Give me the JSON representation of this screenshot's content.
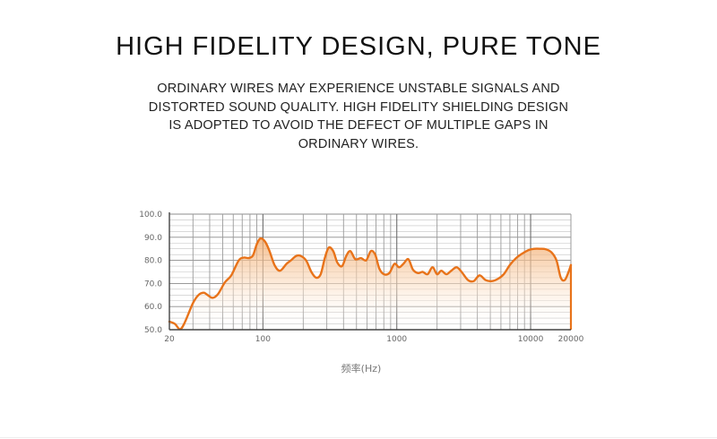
{
  "header": {
    "title": "HIGH FIDELITY DESIGN, PURE TONE",
    "description": "ORDINARY WIRES MAY EXPERIENCE UNSTABLE SIGNALS AND DISTORTED SOUND QUALITY. HIGH FIDELITY SHIELDING DESIGN IS ADOPTED TO AVOID THE DEFECT OF MULTIPLE GAPS IN ORDINARY WIRES."
  },
  "chart_data": {
    "type": "area",
    "title": "",
    "xlabel": "频率(Hz)",
    "ylabel": "",
    "x_scale": "log",
    "xlim": [
      20,
      20000
    ],
    "ylim": [
      50,
      100
    ],
    "x_tick_labels": [
      "20",
      "100",
      "1000",
      "10000",
      "20000"
    ],
    "x_ticks": [
      20,
      100,
      1000,
      10000,
      20000
    ],
    "y_tick_labels": [
      "100.0",
      "90.0",
      "80.0",
      "70.0",
      "60.0",
      "50.0"
    ],
    "y_ticks": [
      100,
      90,
      80,
      70,
      60,
      50
    ],
    "grid": true,
    "line_color": "#e8731a",
    "fill_color": "#f7d3b0",
    "series": [
      {
        "x": [
          20,
          22,
          24,
          26,
          30,
          33,
          36,
          38,
          42,
          46,
          52,
          58,
          66,
          72,
          78,
          84,
          90,
          96,
          104,
          112,
          122,
          134,
          150,
          162,
          176,
          190,
          210,
          230,
          250,
          270,
          290,
          310,
          335,
          360,
          390,
          420,
          450,
          490,
          540,
          590,
          640,
          690,
          740,
          800,
          880,
          960,
          1040,
          1120,
          1220,
          1320,
          1440,
          1560,
          1700,
          1850,
          2000,
          2150,
          2350,
          2550,
          2800,
          3050,
          3400,
          3750,
          4150,
          4600,
          5100,
          5700,
          6300,
          7000,
          7800,
          8700,
          9700,
          10700,
          11800,
          13000,
          14300,
          15600,
          16800,
          18000,
          19200,
          20000
        ],
        "y": [
          53.5,
          52.5,
          50.2,
          53,
          61.5,
          65,
          66,
          65.3,
          63.8,
          65.3,
          70.5,
          73.5,
          80,
          81.2,
          81,
          82,
          87,
          89.5,
          88,
          84,
          78,
          75.5,
          78.5,
          80,
          81.8,
          82,
          80,
          75,
          72.5,
          74,
          81,
          85.5,
          84,
          79,
          77.5,
          82,
          84,
          80.5,
          81,
          80,
          84,
          82.5,
          76.5,
          74,
          74.5,
          78.5,
          77,
          78.5,
          80.5,
          76,
          74.5,
          75,
          74,
          77,
          74,
          75.5,
          74,
          75.5,
          77,
          75,
          71.5,
          71,
          73.5,
          71.5,
          71,
          72,
          74,
          78,
          81,
          83,
          84.5,
          85,
          85,
          84.8,
          83.5,
          80,
          72.5,
          71.5,
          75,
          78
        ]
      }
    ]
  }
}
